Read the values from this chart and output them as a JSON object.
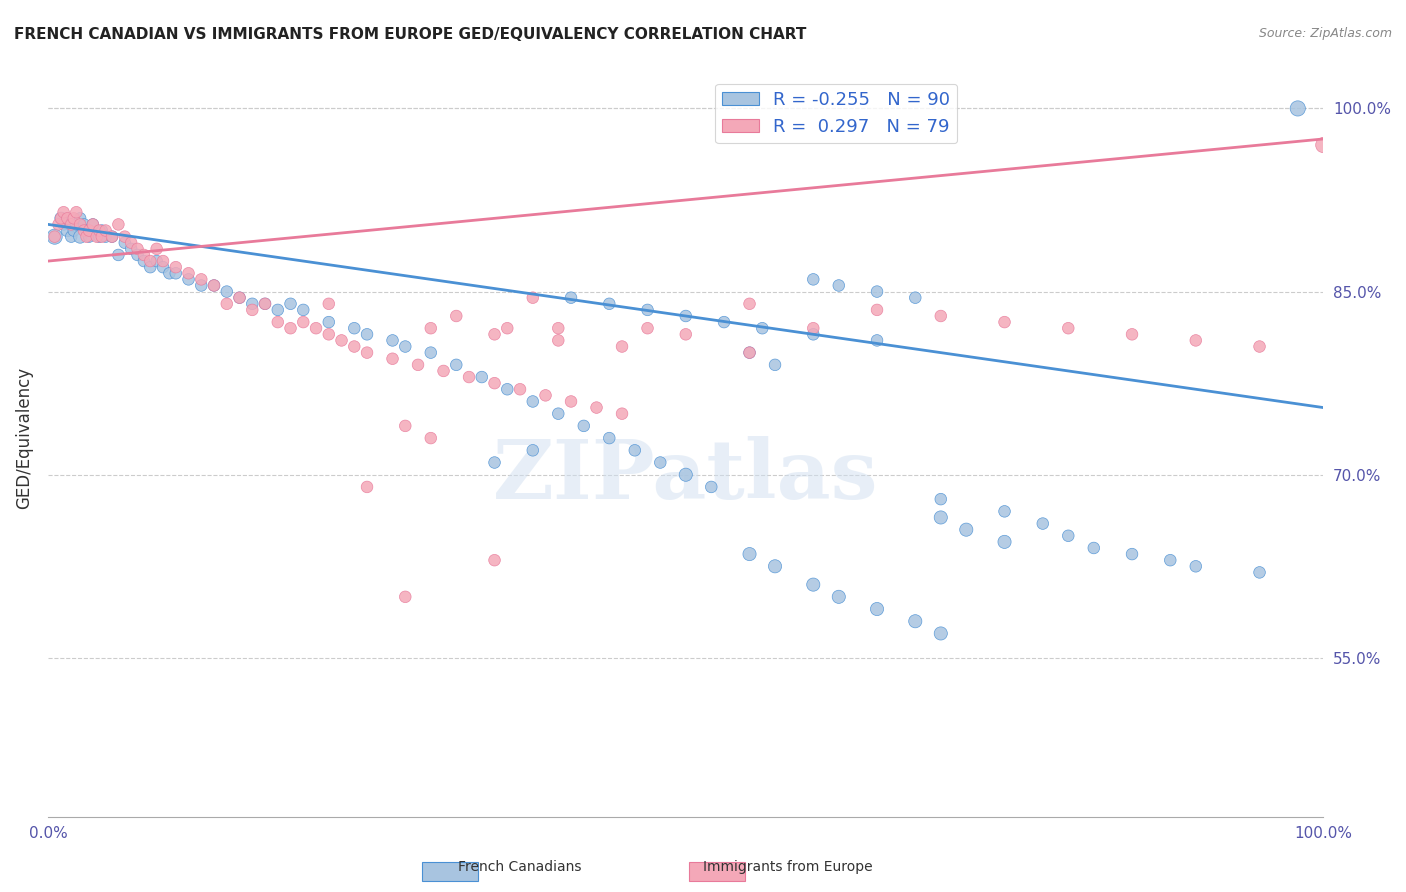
{
  "title": "FRENCH CANADIAN VS IMMIGRANTS FROM EUROPE GED/EQUIVALENCY CORRELATION CHART",
  "source": "Source: ZipAtlas.com",
  "ylabel": "GED/Equivalency",
  "xlabel": "",
  "xlim": [
    0,
    1
  ],
  "ylim": [
    0.42,
    1.04
  ],
  "yticks": [
    0.55,
    0.7,
    0.85,
    1.0
  ],
  "ytick_labels": [
    "55.0%",
    "70.0%",
    "85.0%",
    "100.0%"
  ],
  "xticks": [
    0.0,
    0.2,
    0.4,
    0.6,
    0.8,
    1.0
  ],
  "xtick_labels": [
    "0.0%",
    "",
    "",
    "",
    "",
    "100.0%"
  ],
  "blue_R": -0.255,
  "blue_N": 90,
  "pink_R": 0.297,
  "pink_N": 79,
  "blue_color": "#a8c4e0",
  "pink_color": "#f4a8b8",
  "blue_line_color": "#4a90d4",
  "pink_line_color": "#e87a9a",
  "watermark": "ZIPatlas",
  "blue_points_x": [
    0.005,
    0.01,
    0.012,
    0.015,
    0.018,
    0.02,
    0.022,
    0.025,
    0.025,
    0.028,
    0.03,
    0.032,
    0.035,
    0.04,
    0.042,
    0.045,
    0.05,
    0.055,
    0.06,
    0.065,
    0.07,
    0.075,
    0.08,
    0.085,
    0.09,
    0.095,
    0.1,
    0.11,
    0.12,
    0.13,
    0.14,
    0.15,
    0.16,
    0.17,
    0.18,
    0.19,
    0.2,
    0.22,
    0.24,
    0.25,
    0.27,
    0.28,
    0.3,
    0.32,
    0.34,
    0.36,
    0.38,
    0.4,
    0.42,
    0.44,
    0.46,
    0.48,
    0.5,
    0.52,
    0.55,
    0.57,
    0.6,
    0.62,
    0.65,
    0.68,
    0.7,
    0.72,
    0.75,
    0.55,
    0.57,
    0.6,
    0.62,
    0.65,
    0.68,
    0.7,
    0.35,
    0.38,
    0.41,
    0.44,
    0.47,
    0.5,
    0.53,
    0.56,
    0.6,
    0.65,
    0.7,
    0.75,
    0.78,
    0.8,
    0.82,
    0.85,
    0.88,
    0.9,
    0.95,
    0.98
  ],
  "blue_points_y": [
    0.895,
    0.91,
    0.905,
    0.9,
    0.895,
    0.9,
    0.905,
    0.895,
    0.91,
    0.905,
    0.9,
    0.895,
    0.905,
    0.895,
    0.9,
    0.895,
    0.895,
    0.88,
    0.89,
    0.885,
    0.88,
    0.875,
    0.87,
    0.875,
    0.87,
    0.865,
    0.865,
    0.86,
    0.855,
    0.855,
    0.85,
    0.845,
    0.84,
    0.84,
    0.835,
    0.84,
    0.835,
    0.825,
    0.82,
    0.815,
    0.81,
    0.805,
    0.8,
    0.79,
    0.78,
    0.77,
    0.76,
    0.75,
    0.74,
    0.73,
    0.72,
    0.71,
    0.7,
    0.69,
    0.8,
    0.79,
    0.86,
    0.855,
    0.85,
    0.845,
    0.665,
    0.655,
    0.645,
    0.635,
    0.625,
    0.61,
    0.6,
    0.59,
    0.58,
    0.57,
    0.71,
    0.72,
    0.845,
    0.84,
    0.835,
    0.83,
    0.825,
    0.82,
    0.815,
    0.81,
    0.68,
    0.67,
    0.66,
    0.65,
    0.64,
    0.635,
    0.63,
    0.625,
    0.62,
    1.0
  ],
  "blue_points_size": [
    120,
    80,
    70,
    80,
    70,
    70,
    70,
    90,
    70,
    70,
    70,
    70,
    70,
    70,
    70,
    70,
    70,
    70,
    70,
    70,
    70,
    70,
    70,
    70,
    70,
    70,
    70,
    70,
    70,
    70,
    70,
    70,
    70,
    70,
    70,
    70,
    70,
    70,
    70,
    70,
    70,
    70,
    70,
    70,
    70,
    70,
    70,
    70,
    70,
    70,
    70,
    70,
    90,
    70,
    70,
    70,
    70,
    70,
    70,
    70,
    90,
    90,
    90,
    90,
    90,
    90,
    90,
    90,
    90,
    90,
    70,
    70,
    70,
    70,
    70,
    70,
    70,
    70,
    70,
    70,
    70,
    70,
    70,
    70,
    70,
    70,
    70,
    70,
    70,
    120
  ],
  "pink_points_x": [
    0.005,
    0.008,
    0.01,
    0.012,
    0.015,
    0.018,
    0.02,
    0.022,
    0.025,
    0.028,
    0.03,
    0.032,
    0.035,
    0.038,
    0.04,
    0.042,
    0.045,
    0.05,
    0.055,
    0.06,
    0.065,
    0.07,
    0.075,
    0.08,
    0.085,
    0.09,
    0.1,
    0.11,
    0.12,
    0.13,
    0.14,
    0.15,
    0.16,
    0.17,
    0.18,
    0.19,
    0.2,
    0.21,
    0.22,
    0.23,
    0.24,
    0.25,
    0.27,
    0.29,
    0.31,
    0.33,
    0.35,
    0.37,
    0.39,
    0.41,
    0.43,
    0.45,
    0.47,
    0.5,
    0.55,
    0.6,
    0.3,
    0.35,
    0.4,
    0.45,
    0.55,
    0.65,
    0.7,
    0.75,
    0.8,
    0.85,
    0.9,
    0.95,
    1.0,
    0.22,
    0.25,
    0.28,
    0.32,
    0.36,
    0.38,
    0.35,
    0.4,
    0.28,
    0.3
  ],
  "pink_points_y": [
    0.895,
    0.905,
    0.91,
    0.915,
    0.91,
    0.905,
    0.91,
    0.915,
    0.905,
    0.9,
    0.895,
    0.9,
    0.905,
    0.895,
    0.9,
    0.895,
    0.9,
    0.895,
    0.905,
    0.895,
    0.89,
    0.885,
    0.88,
    0.875,
    0.885,
    0.875,
    0.87,
    0.865,
    0.86,
    0.855,
    0.84,
    0.845,
    0.835,
    0.84,
    0.825,
    0.82,
    0.825,
    0.82,
    0.815,
    0.81,
    0.805,
    0.8,
    0.795,
    0.79,
    0.785,
    0.78,
    0.775,
    0.77,
    0.765,
    0.76,
    0.755,
    0.75,
    0.82,
    0.815,
    0.8,
    0.82,
    0.82,
    0.815,
    0.81,
    0.805,
    0.84,
    0.835,
    0.83,
    0.825,
    0.82,
    0.815,
    0.81,
    0.805,
    0.97,
    0.84,
    0.69,
    0.6,
    0.83,
    0.82,
    0.845,
    0.63,
    0.82,
    0.74,
    0.73
  ],
  "pink_points_size": [
    70,
    70,
    70,
    70,
    70,
    70,
    70,
    70,
    70,
    70,
    70,
    70,
    70,
    70,
    70,
    70,
    70,
    70,
    70,
    70,
    70,
    70,
    70,
    70,
    70,
    70,
    70,
    70,
    70,
    70,
    70,
    70,
    70,
    70,
    70,
    70,
    70,
    70,
    70,
    70,
    70,
    70,
    70,
    70,
    70,
    70,
    70,
    70,
    70,
    70,
    70,
    70,
    70,
    70,
    70,
    70,
    70,
    70,
    70,
    70,
    70,
    70,
    70,
    70,
    70,
    70,
    70,
    70,
    120,
    70,
    70,
    70,
    70,
    70,
    70,
    70,
    70,
    70,
    70
  ],
  "blue_trend_x": [
    0.0,
    1.0
  ],
  "blue_trend_y_start": 0.905,
  "blue_trend_y_end": 0.755,
  "pink_trend_x": [
    0.0,
    1.0
  ],
  "pink_trend_y_start": 0.875,
  "pink_trend_y_end": 0.975
}
